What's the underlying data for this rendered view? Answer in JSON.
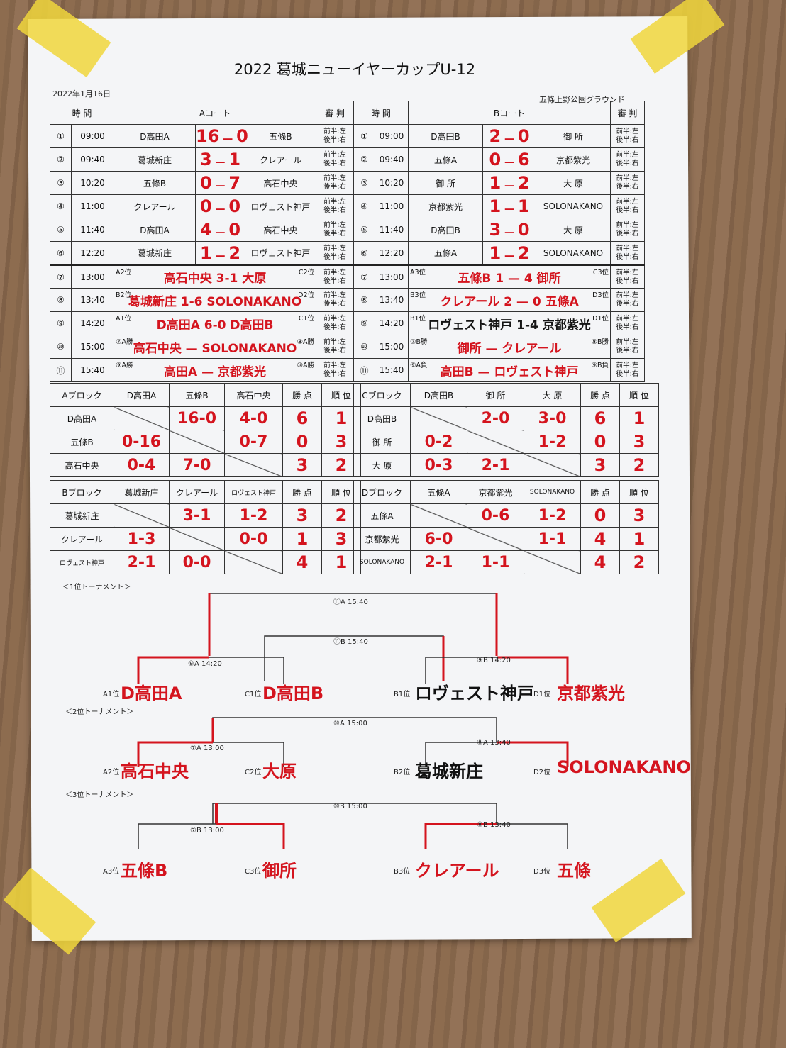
{
  "title": "2022 葛城ニューイヤーカップU-12",
  "date": "2022年1月16日",
  "venue": "五條上野公園グラウンド",
  "schedule": {
    "headers": {
      "time": "時 間",
      "court_a": "Aコート",
      "court_b": "Bコート",
      "ref": "審 判"
    },
    "ref_text": "前半:左 後半:右",
    "a": [
      {
        "no": "①",
        "time": "09:00",
        "home": "D高田A",
        "sh": "16",
        "sa": "0",
        "away": "五條B"
      },
      {
        "no": "②",
        "time": "09:40",
        "home": "葛城新庄",
        "sh": "3",
        "sa": "1",
        "away": "クレアール"
      },
      {
        "no": "③",
        "time": "10:20",
        "home": "五條B",
        "sh": "0",
        "sa": "7",
        "away": "高石中央"
      },
      {
        "no": "④",
        "time": "11:00",
        "home": "クレアール",
        "sh": "0",
        "sa": "0",
        "away": "ロヴェスト神戸"
      },
      {
        "no": "⑤",
        "time": "11:40",
        "home": "D高田A",
        "sh": "4",
        "sa": "0",
        "away": "高石中央"
      },
      {
        "no": "⑥",
        "time": "12:20",
        "home": "葛城新庄",
        "sh": "1",
        "sa": "2",
        "away": "ロヴェスト神戸"
      },
      {
        "no": "⑦",
        "time": "13:00",
        "seedL": "A2位",
        "seedR": "C2位",
        "hand": "高石中央 3-1 大原"
      },
      {
        "no": "⑧",
        "time": "13:40",
        "seedL": "B2位",
        "seedR": "D2位",
        "hand": "葛城新庄 1-6 SOLONAKANO"
      },
      {
        "no": "⑨",
        "time": "14:20",
        "seedL": "A1位",
        "seedR": "C1位",
        "hand": "D高田A 6-0 D高田B"
      },
      {
        "no": "⑩",
        "time": "15:00",
        "seedL": "⑦A勝",
        "seedR": "⑧A勝",
        "hand": "高石中央 — SOLONAKANO"
      },
      {
        "no": "⑪",
        "time": "15:40",
        "seedL": "⑨A勝",
        "seedR": "⑩A勝",
        "hand": "高田A — 京都紫光"
      }
    ],
    "b": [
      {
        "no": "①",
        "time": "09:00",
        "home": "D高田B",
        "sh": "2",
        "sa": "0",
        "away": "御 所"
      },
      {
        "no": "②",
        "time": "09:40",
        "home": "五條A",
        "sh": "0",
        "sa": "6",
        "away": "京都紫光"
      },
      {
        "no": "③",
        "time": "10:20",
        "home": "御 所",
        "sh": "1",
        "sa": "2",
        "away": "大 原"
      },
      {
        "no": "④",
        "time": "11:00",
        "home": "京都紫光",
        "sh": "1",
        "sa": "1",
        "away": "SOLONAKANO"
      },
      {
        "no": "⑤",
        "time": "11:40",
        "home": "D高田B",
        "sh": "3",
        "sa": "0",
        "away": "大 原"
      },
      {
        "no": "⑥",
        "time": "12:20",
        "home": "五條A",
        "sh": "1",
        "sa": "2",
        "away": "SOLONAKANO"
      },
      {
        "no": "⑦",
        "time": "13:00",
        "seedL": "A3位",
        "seedR": "C3位",
        "hand": "五條B 1 — 4 御所"
      },
      {
        "no": "⑧",
        "time": "13:40",
        "seedL": "B3位",
        "seedR": "D3位",
        "hand": "クレアール 2 — 0 五條A"
      },
      {
        "no": "⑨",
        "time": "14:20",
        "seedL": "B1位",
        "seedR": "D1位",
        "hand": "ロヴェスト神戸 1-4 京都紫光",
        "ink": "black"
      },
      {
        "no": "⑩",
        "time": "15:00",
        "seedL": "⑦B勝",
        "seedR": "⑧B勝",
        "hand": "御所 — クレアール"
      },
      {
        "no": "⑪",
        "time": "15:40",
        "seedL": "⑨A負",
        "seedR": "⑨B負",
        "hand": "高田B — ロヴェスト神戸"
      }
    ]
  },
  "blocks": [
    {
      "name": "Aブロック",
      "teams": [
        "D高田A",
        "五條B",
        "高石中央"
      ],
      "pts_label": "勝 点",
      "rank_label": "順 位",
      "cells": [
        [
          "",
          "16-0",
          "4-0"
        ],
        [
          "0-16",
          "",
          "0-7"
        ],
        [
          "0-4",
          "7-0",
          ""
        ]
      ],
      "pts": [
        "6",
        "0",
        "3"
      ],
      "rank": [
        "1",
        "3",
        "2"
      ]
    },
    {
      "name": "Cブロック",
      "teams": [
        "D高田B",
        "御 所",
        "大 原"
      ],
      "pts_label": "勝 点",
      "rank_label": "順 位",
      "cells": [
        [
          "",
          "2-0",
          "3-0"
        ],
        [
          "0-2",
          "",
          "1-2"
        ],
        [
          "0-3",
          "2-1",
          ""
        ]
      ],
      "pts": [
        "6",
        "0",
        "3"
      ],
      "rank": [
        "1",
        "3",
        "2"
      ]
    },
    {
      "name": "Bブロック",
      "teams": [
        "葛城新庄",
        "クレアール",
        "ロヴェスト神戸"
      ],
      "pts_label": "勝 点",
      "rank_label": "順 位",
      "cells": [
        [
          "",
          "3-1",
          "1-2"
        ],
        [
          "1-3",
          "",
          "0-0"
        ],
        [
          "2-1",
          "0-0",
          ""
        ]
      ],
      "pts": [
        "3",
        "1",
        "4"
      ],
      "rank": [
        "2",
        "3",
        "1"
      ]
    },
    {
      "name": "Dブロック",
      "teams": [
        "五條A",
        "京都紫光",
        "SOLONAKANO"
      ],
      "pts_label": "勝 点",
      "rank_label": "順 位",
      "cells": [
        [
          "",
          "0-6",
          "1-2"
        ],
        [
          "6-0",
          "",
          "1-1"
        ],
        [
          "2-1",
          "1-1",
          ""
        ]
      ],
      "pts": [
        "0",
        "4",
        "4"
      ],
      "rank": [
        "3",
        "1",
        "2"
      ]
    }
  ],
  "tournaments": {
    "t1": {
      "label": "＜1位トーナメント＞",
      "final_a": "⑪A 15:40",
      "final_b": "⑪B 15:40",
      "semi_a": "⑨A 14:20",
      "semi_b": "⑨B 14:20",
      "seeds": [
        "A1位",
        "C1位",
        "B1位",
        "D1位"
      ],
      "teams": [
        "D高田A",
        "D高田B",
        "ロヴェスト神戸",
        "京都紫光"
      ]
    },
    "t2": {
      "label": "＜2位トーナメント＞",
      "final": "⑩A 15:00",
      "semi_a": "⑦A 13:00",
      "semi_b": "⑧A 13:40",
      "seeds": [
        "A2位",
        "C2位",
        "B2位",
        "D2位"
      ],
      "teams": [
        "高石中央",
        "大原",
        "葛城新庄",
        "SOLONAKANO"
      ]
    },
    "t3": {
      "label": "＜3位トーナメント＞",
      "final": "⑩B 15:00",
      "semi_a": "⑦B 13:00",
      "semi_b": "⑧B 13:40",
      "seeds": [
        "A3位",
        "C3位",
        "B3位",
        "D3位"
      ],
      "teams": [
        "五條B",
        "御所",
        "クレアール",
        "五條"
      ]
    }
  }
}
